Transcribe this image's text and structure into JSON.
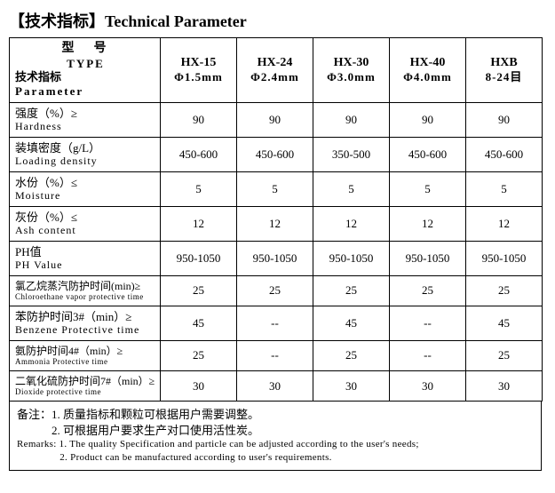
{
  "title": "【技术指标】Technical Parameter",
  "header": {
    "corner_cn_top": "型　号",
    "corner_en_top": "TYPE",
    "corner_cn_bottom": "技术指标",
    "corner_en_bottom": "Parameter",
    "cols": [
      {
        "l1": "HX-15",
        "l2": "Φ1.5mm"
      },
      {
        "l1": "HX-24",
        "l2": "Φ2.4mm"
      },
      {
        "l1": "HX-30",
        "l2": "Φ3.0mm"
      },
      {
        "l1": "HX-40",
        "l2": "Φ4.0mm"
      },
      {
        "l1": "HXB",
        "l2": "8-24目"
      }
    ]
  },
  "rows": [
    {
      "cn": "强度（%）≥",
      "en": "Hardness",
      "v": [
        "90",
        "90",
        "90",
        "90",
        "90"
      ]
    },
    {
      "cn": "装填密度（g/L）",
      "en": "Loading density",
      "v": [
        "450-600",
        "450-600",
        "350-500",
        "450-600",
        "450-600"
      ]
    },
    {
      "cn": "水份（%）≤",
      "en": "Moisture",
      "v": [
        "5",
        "5",
        "5",
        "5",
        "5"
      ]
    },
    {
      "cn": "灰份（%）≤",
      "en": "Ash content",
      "v": [
        "12",
        "12",
        "12",
        "12",
        "12"
      ]
    },
    {
      "cn": "PH值",
      "en": "PH Value",
      "v": [
        "950-1050",
        "950-1050",
        "950-1050",
        "950-1050",
        "950-1050"
      ]
    },
    {
      "cn": "氯乙烷蒸汽防护时间(min)≥",
      "en": "Chloroethane vapor protective time",
      "v": [
        "25",
        "25",
        "25",
        "25",
        "25"
      ],
      "small": true
    },
    {
      "cn": "苯防护时间3#（min）≥",
      "en": "Benzene Protective time",
      "v": [
        "45",
        "--",
        "45",
        "--",
        "45"
      ]
    },
    {
      "cn": "氨防护时间4#（min）≥",
      "en": "Ammonia Protective time",
      "v": [
        "25",
        "--",
        "25",
        "--",
        "25"
      ],
      "small": true
    },
    {
      "cn": "二氧化硫防护时间7#（min）≥",
      "en": "Dioxide protective time",
      "v": [
        "30",
        "30",
        "30",
        "30",
        "30"
      ],
      "small": true
    }
  ],
  "remarks": {
    "cn1": "备注：1. 质量指标和颗粒可根据用户需要调整。",
    "cn2": "　　　2. 可根据用户要求生产对口使用活性炭。",
    "en1": "Remarks: 1. The quality Specification and particle can be adjusted according to the user's needs;",
    "en2": "　　　　 2. Product can be manufactured according to user's requirements."
  }
}
